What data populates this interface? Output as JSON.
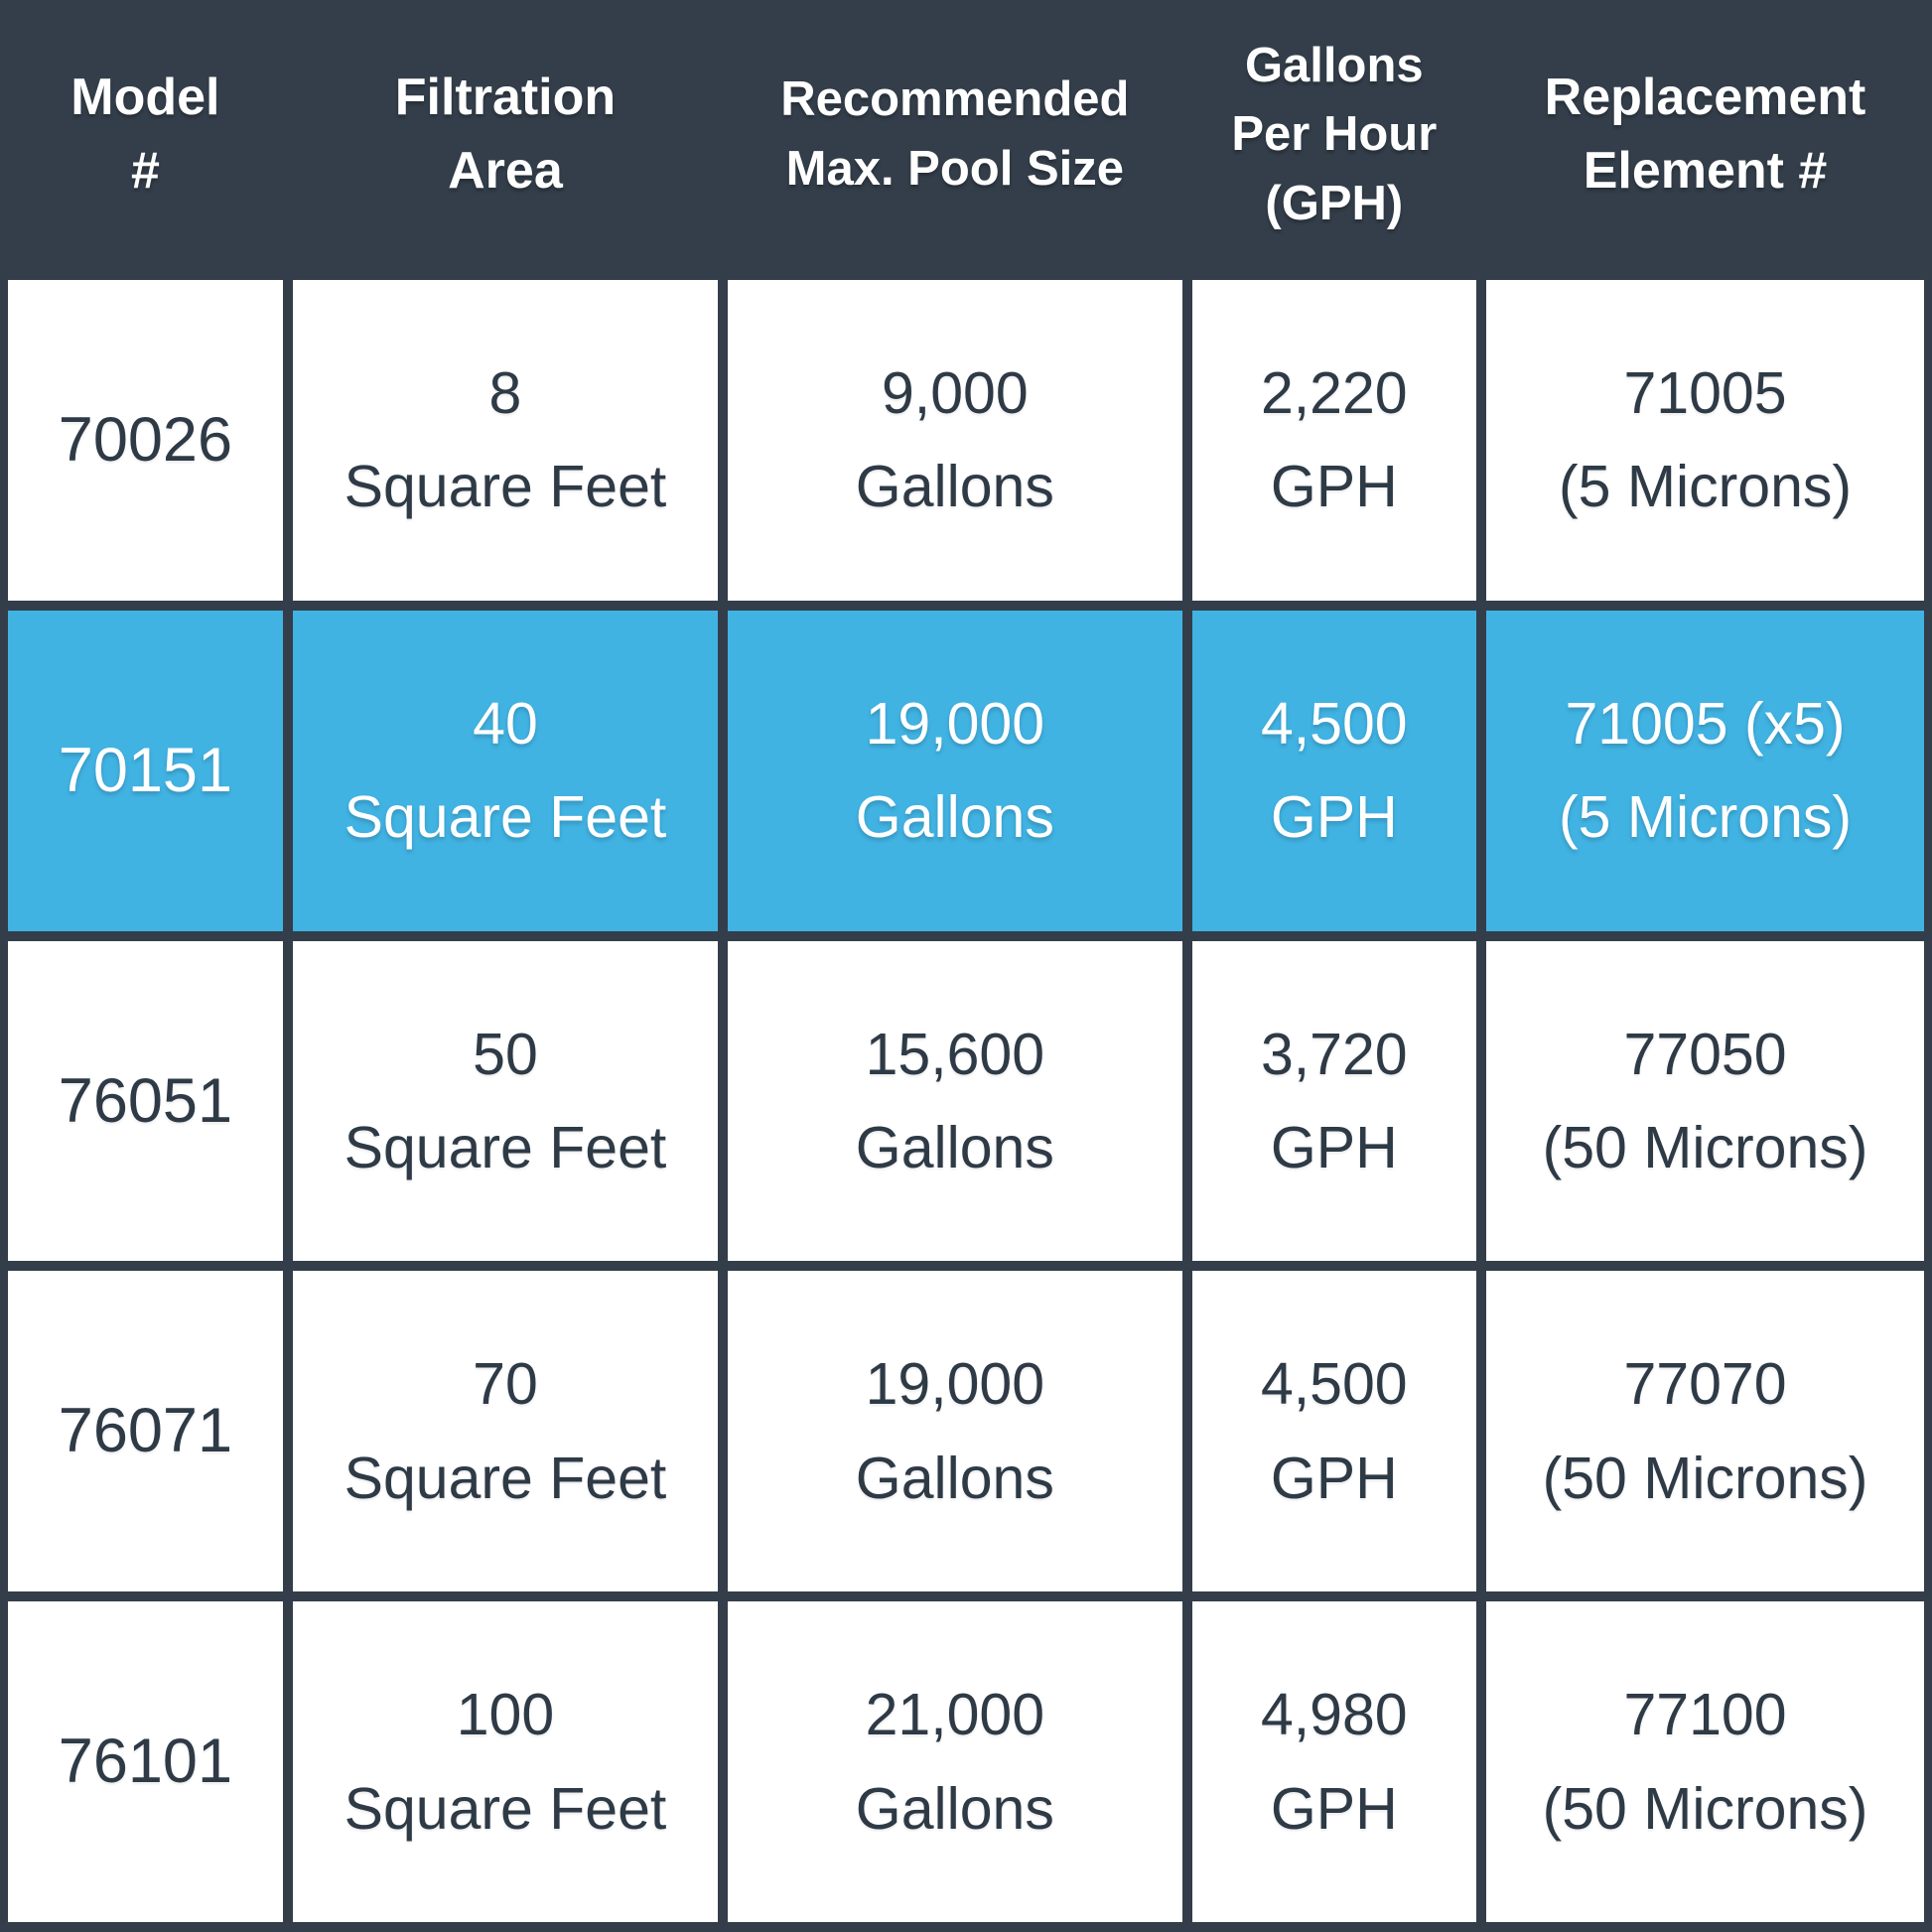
{
  "colors": {
    "header_bg": "#333e4a",
    "border": "#333e4a",
    "cell_bg": "#ffffff",
    "highlight_bg": "#41b3e3",
    "header_text": "#ffffff",
    "cell_text": "#2e3a46",
    "highlight_text": "#ffffff"
  },
  "chart_data": {
    "type": "table",
    "columns": [
      "Model #",
      "Filtration Area",
      "Recommended Max. Pool Size",
      "Gallons Per Hour (GPH)",
      "Replacement Element #"
    ],
    "header_lines": [
      [
        "Model",
        "#"
      ],
      [
        "Filtration",
        "Area"
      ],
      [
        "Recommended",
        "Max. Pool Size"
      ],
      [
        "Gallons",
        "Per Hour",
        "(GPH)"
      ],
      [
        "Replacement",
        "Element #"
      ]
    ],
    "rows": [
      {
        "highlighted": false,
        "cells": [
          [
            "70026"
          ],
          [
            "8",
            "Square Feet"
          ],
          [
            "9,000",
            "Gallons"
          ],
          [
            "2,220",
            "GPH"
          ],
          [
            "71005",
            "(5 Microns)"
          ]
        ]
      },
      {
        "highlighted": true,
        "cells": [
          [
            "70151"
          ],
          [
            "40",
            "Square Feet"
          ],
          [
            "19,000",
            "Gallons"
          ],
          [
            "4,500",
            "GPH"
          ],
          [
            "71005 (x5)",
            "(5 Microns)"
          ]
        ]
      },
      {
        "highlighted": false,
        "cells": [
          [
            "76051"
          ],
          [
            "50",
            "Square Feet"
          ],
          [
            "15,600",
            "Gallons"
          ],
          [
            "3,720",
            "GPH"
          ],
          [
            "77050",
            "(50 Microns)"
          ]
        ]
      },
      {
        "highlighted": false,
        "cells": [
          [
            "76071"
          ],
          [
            "70",
            "Square Feet"
          ],
          [
            "19,000",
            "Gallons"
          ],
          [
            "4,500",
            "GPH"
          ],
          [
            "77070",
            "(50 Microns)"
          ]
        ]
      },
      {
        "highlighted": false,
        "cells": [
          [
            "76101"
          ],
          [
            "100",
            "Square Feet"
          ],
          [
            "21,000",
            "Gallons"
          ],
          [
            "4,980",
            "GPH"
          ],
          [
            "77100",
            "(50 Microns)"
          ]
        ]
      }
    ],
    "highlighted_row_model": "70151"
  }
}
